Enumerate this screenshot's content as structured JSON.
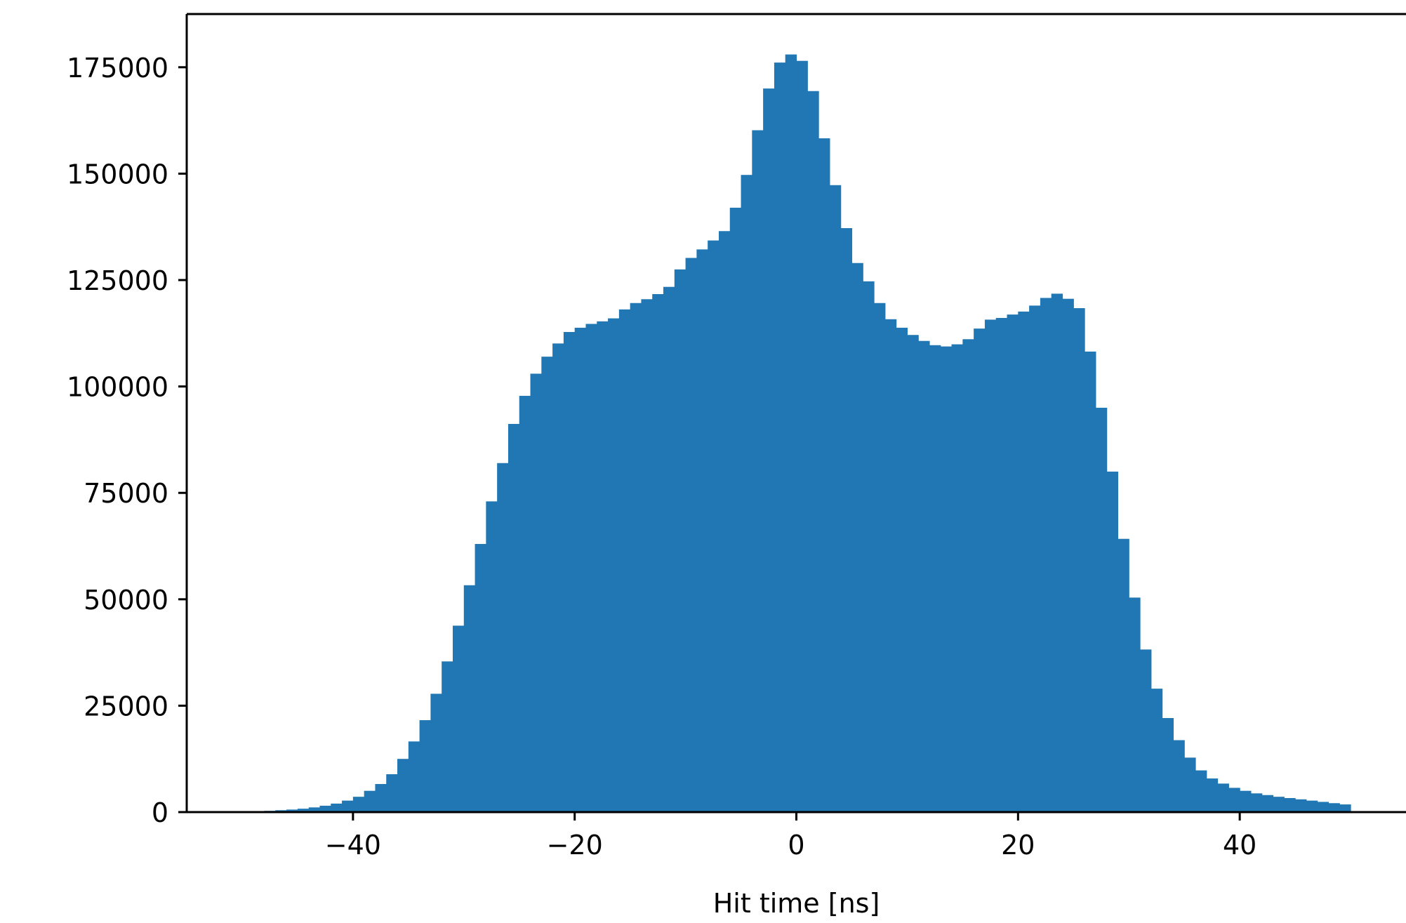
{
  "chart_data": {
    "type": "bar",
    "subtype": "histogram",
    "title": "",
    "xlabel": "Hit time [ns]",
    "ylabel": "",
    "xlim": [
      -55,
      55
    ],
    "ylim": [
      0,
      187500
    ],
    "xticks": [
      -40,
      -20,
      0,
      20,
      40
    ],
    "xtick_labels": [
      "−40",
      "−20",
      "0",
      "20",
      "40"
    ],
    "yticks": [
      0,
      25000,
      50000,
      75000,
      100000,
      125000,
      150000,
      175000
    ],
    "ytick_labels": [
      "0",
      "25000",
      "50000",
      "75000",
      "100000",
      "125000",
      "150000",
      "175000"
    ],
    "grid": false,
    "legend": "none",
    "bar_color": "#2077b4",
    "bin_edges_range": [
      -50,
      50
    ],
    "bin_width": 1,
    "values": [
      100,
      200,
      300,
      450,
      600,
      800,
      1100,
      1500,
      2000,
      2700,
      3600,
      5000,
      6600,
      8900,
      12500,
      16600,
      21600,
      27800,
      35400,
      43800,
      53300,
      63000,
      73000,
      82000,
      91200,
      97800,
      103000,
      107000,
      110100,
      112800,
      113800,
      114700,
      115300,
      116000,
      118100,
      119600,
      120500,
      121700,
      123400,
      127500,
      130200,
      132200,
      134300,
      136500,
      142000,
      149700,
      160200,
      170000,
      176100,
      178000,
      176500,
      169400,
      158300,
      147300,
      137200,
      129000,
      124700,
      119600,
      115800,
      113800,
      112100,
      110700,
      109700,
      109400,
      109900,
      111100,
      113600,
      115700,
      116100,
      116900,
      117600,
      119000,
      120800,
      121800,
      120600,
      118400,
      108200,
      95000,
      80000,
      64200,
      50400,
      38200,
      29000,
      22100,
      16900,
      12800,
      9800,
      7900,
      6700,
      5700,
      5000,
      4400,
      4000,
      3600,
      3300,
      3000,
      2700,
      2400,
      2100,
      1800
    ]
  }
}
